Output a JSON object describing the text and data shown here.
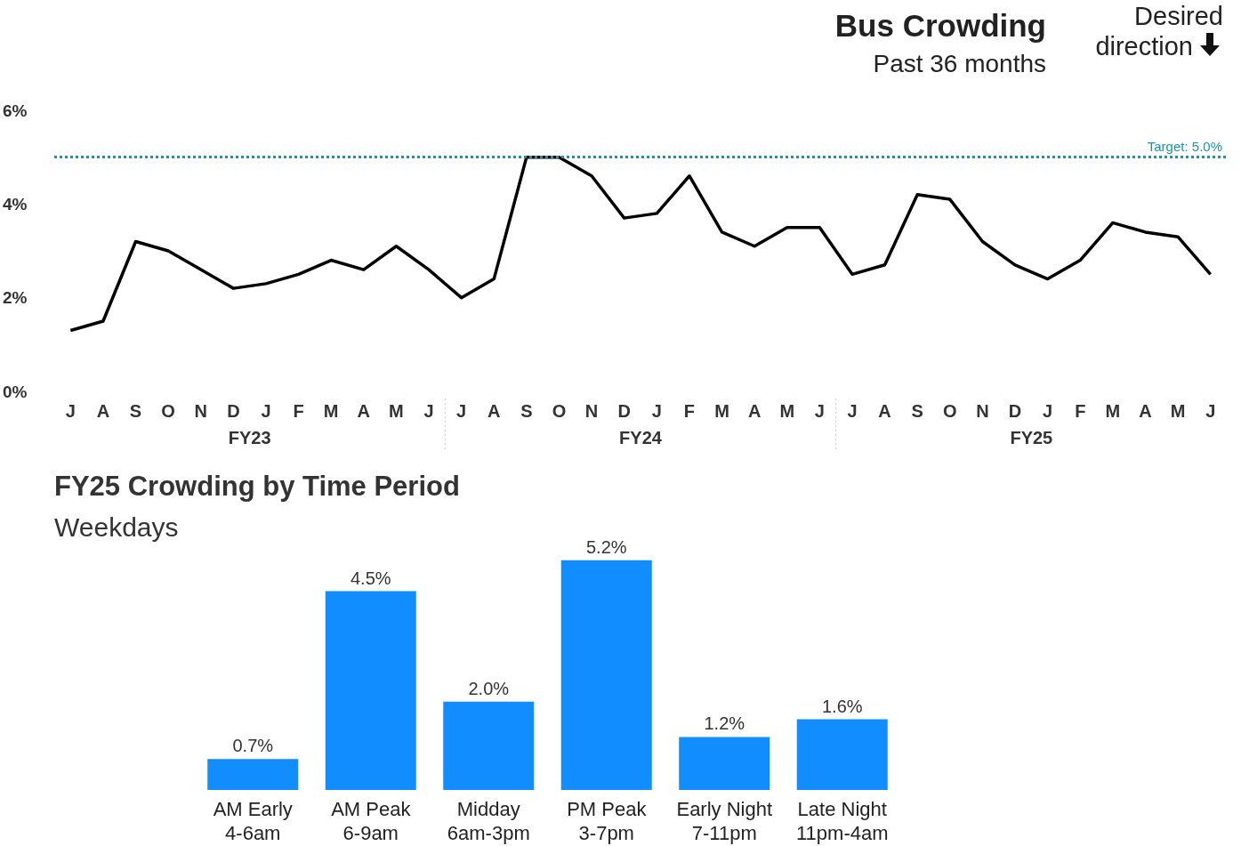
{
  "chart_data": [
    {
      "type": "line",
      "title": "Bus Crowding",
      "subtitle": "Past 36 months",
      "categories": [
        "J",
        "A",
        "S",
        "O",
        "N",
        "D",
        "J",
        "F",
        "M",
        "A",
        "M",
        "J",
        "J",
        "A",
        "S",
        "O",
        "N",
        "D",
        "J",
        "F",
        "M",
        "A",
        "M",
        "J",
        "J",
        "A",
        "S",
        "O",
        "N",
        "D",
        "J",
        "F",
        "M",
        "A",
        "M",
        "J"
      ],
      "series": [
        {
          "color": "#000000",
          "values": [
            1.3,
            1.5,
            3.2,
            3.0,
            2.6,
            2.2,
            2.3,
            2.5,
            2.8,
            2.6,
            3.1,
            2.6,
            2.0,
            2.4,
            5.0,
            5.0,
            4.6,
            3.7,
            3.8,
            4.6,
            3.4,
            3.1,
            3.5,
            3.5,
            2.5,
            2.7,
            4.2,
            4.1,
            3.2,
            2.7,
            2.4,
            2.8,
            3.6,
            3.4,
            3.3,
            2.5
          ]
        }
      ],
      "ylim": [
        0,
        6
      ],
      "yticks": [
        {
          "value": 0,
          "label": "0%"
        },
        {
          "value": 2,
          "label": "2%"
        },
        {
          "value": 4,
          "label": "4%"
        },
        {
          "value": 6,
          "label": "6%"
        }
      ],
      "ref_lines": [
        {
          "axis": "y",
          "value": 5,
          "label": "Target: 5.0%",
          "color": "#1996aa",
          "line_style": "dotted"
        }
      ],
      "annotations": [
        "FY23",
        "FY24",
        "FY25",
        "Desired direction"
      ],
      "marker": "none",
      "grid": false
    },
    {
      "type": "bar",
      "title": "FY25 Crowding by Time Period",
      "subtitle": "Weekdays",
      "categories": [
        "AM Early\n4-6am",
        "AM Peak\n6-9am",
        "Midday\n6am-3pm",
        "PM Peak\n3-7pm",
        "Early Night\n7-11pm",
        "Late Night\n11pm-4am"
      ],
      "series": [
        {
          "color": "#118dff",
          "values": [
            0.7,
            4.5,
            2.0,
            5.2,
            1.2,
            1.6
          ],
          "value_labels": [
            "0.7%",
            "4.5%",
            "2.0%",
            "5.2%",
            "1.2%",
            "1.6%"
          ]
        }
      ],
      "tick_labels": "x",
      "grid": false
    }
  ]
}
